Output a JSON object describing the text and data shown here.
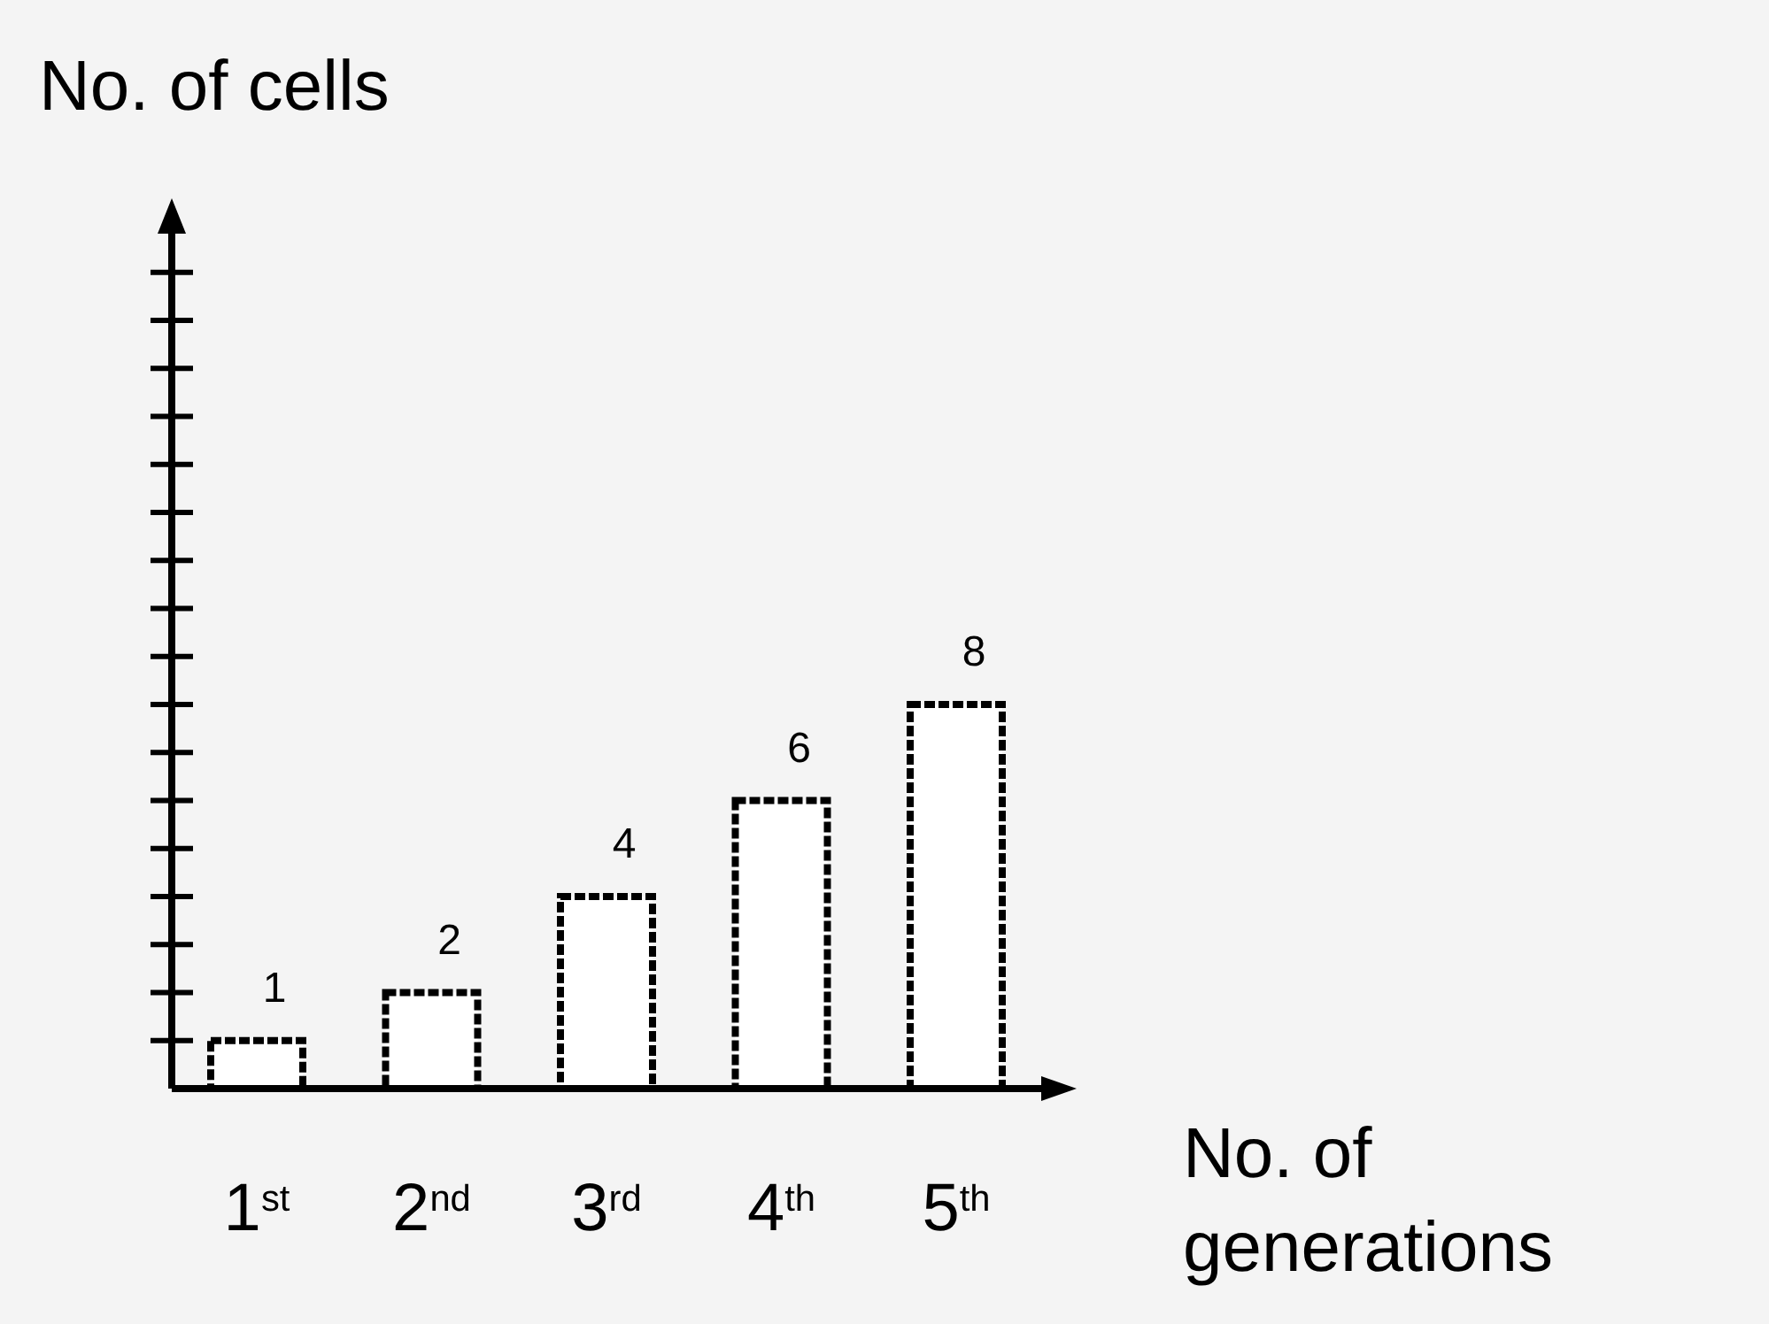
{
  "chart_data": {
    "type": "bar",
    "xlabel": "No. of generations",
    "annotations": [
      "No. of cells"
    ],
    "categories": [
      "1$^{st}$",
      "2$^{nd}$",
      "3$^{rd}$",
      "4$^{th}$",
      "5$^{th}$"
    ],
    "values": [
      1,
      2,
      4,
      6,
      8
    ],
    "color": "#ffffff",
    "data_labels": true,
    "tick_labels": "x"
  }
}
